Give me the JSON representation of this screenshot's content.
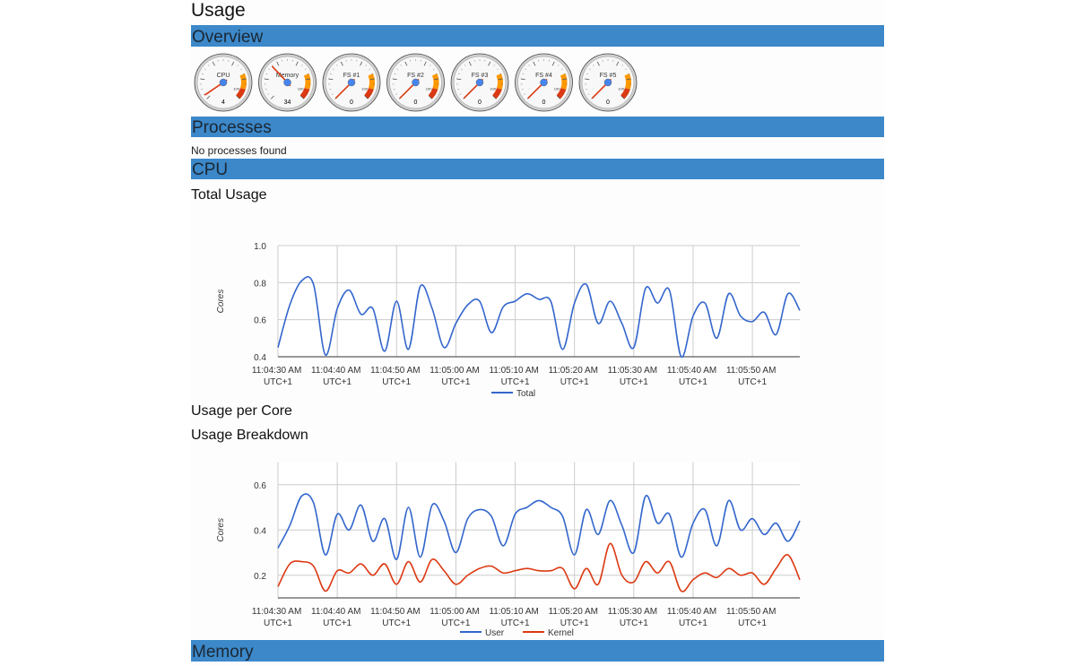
{
  "title": "Usage",
  "overview": {
    "heading": "Overview",
    "gauge_scale": {
      "min": 0,
      "max": 100,
      "max_label": "100"
    },
    "bands": [
      {
        "from": 75,
        "to": 90,
        "color": "#ff9900"
      },
      {
        "from": 90,
        "to": 100,
        "color": "#dc3912"
      }
    ],
    "gauges": [
      {
        "label": "CPU",
        "value": 4
      },
      {
        "label": "Memory",
        "value": 34
      },
      {
        "label": "FS #1",
        "value": 0
      },
      {
        "label": "FS #2",
        "value": 0
      },
      {
        "label": "FS #3",
        "value": 0
      },
      {
        "label": "FS #4",
        "value": 0
      },
      {
        "label": "FS #5",
        "value": 0
      }
    ]
  },
  "processes": {
    "heading": "Processes",
    "message": "No processes found"
  },
  "cpu": {
    "heading": "CPU",
    "total_heading": "Total Usage",
    "per_core_heading": "Usage per Core",
    "breakdown_heading": "Usage Breakdown"
  },
  "chart_data": [
    {
      "type": "line",
      "y_label": "Cores",
      "grid": true,
      "legend": "bottom",
      "x": [
        39870,
        39872,
        39874,
        39876,
        39878,
        39880,
        39882,
        39884,
        39886,
        39888,
        39890,
        39892,
        39894,
        39896,
        39898,
        39900,
        39902,
        39904,
        39906,
        39908,
        39910,
        39912,
        39914,
        39916,
        39918,
        39920,
        39922,
        39924,
        39926,
        39928,
        39930,
        39932,
        39934,
        39936,
        39938,
        39940,
        39942,
        39944,
        39946,
        39948,
        39950,
        39952,
        39954,
        39956,
        39958
      ],
      "xlim": [
        39870,
        39958
      ],
      "xticks": [
        {
          "value": 39870,
          "label": "11:04:30 AM UTC+1"
        },
        {
          "value": 39880,
          "label": "11:04:40 AM UTC+1"
        },
        {
          "value": 39890,
          "label": "11:04:50 AM UTC+1"
        },
        {
          "value": 39900,
          "label": "11:05:00 AM UTC+1"
        },
        {
          "value": 39910,
          "label": "11:05:10 AM UTC+1"
        },
        {
          "value": 39920,
          "label": "11:05:20 AM UTC+1"
        },
        {
          "value": 39930,
          "label": "11:05:30 AM UTC+1"
        },
        {
          "value": 39940,
          "label": "11:05:40 AM UTC+1"
        },
        {
          "value": 39950,
          "label": "11:05:50 AM UTC+1"
        }
      ],
      "ylim": [
        0.4,
        1
      ],
      "yticks": [
        0.4,
        0.6,
        0.8,
        {
          "value": 1,
          "label": "1.0"
        }
      ],
      "series": [
        {
          "name": "Total",
          "color": "#3366cc",
          "values": [
            0.45,
            0.68,
            0.81,
            0.79,
            0.41,
            0.66,
            0.76,
            0.63,
            0.66,
            0.43,
            0.7,
            0.44,
            0.78,
            0.66,
            0.45,
            0.58,
            0.68,
            0.7,
            0.53,
            0.67,
            0.7,
            0.74,
            0.71,
            0.7,
            0.44,
            0.69,
            0.79,
            0.58,
            0.7,
            0.58,
            0.45,
            0.77,
            0.69,
            0.76,
            0.4,
            0.62,
            0.69,
            0.5,
            0.74,
            0.62,
            0.59,
            0.64,
            0.52,
            0.74,
            0.65
          ]
        }
      ]
    },
    {
      "type": "line",
      "y_label": "Cores",
      "grid": true,
      "legend": "bottom",
      "x": [
        39870,
        39872,
        39874,
        39876,
        39878,
        39880,
        39882,
        39884,
        39886,
        39888,
        39890,
        39892,
        39894,
        39896,
        39898,
        39900,
        39902,
        39904,
        39906,
        39908,
        39910,
        39912,
        39914,
        39916,
        39918,
        39920,
        39922,
        39924,
        39926,
        39928,
        39930,
        39932,
        39934,
        39936,
        39938,
        39940,
        39942,
        39944,
        39946,
        39948,
        39950,
        39952,
        39954,
        39956,
        39958
      ],
      "xlim": [
        39870,
        39958
      ],
      "xticks": [
        {
          "value": 39870,
          "label": "11:04:30 AM UTC+1"
        },
        {
          "value": 39880,
          "label": "11:04:40 AM UTC+1"
        },
        {
          "value": 39890,
          "label": "11:04:50 AM UTC+1"
        },
        {
          "value": 39900,
          "label": "11:05:00 AM UTC+1"
        },
        {
          "value": 39910,
          "label": "11:05:10 AM UTC+1"
        },
        {
          "value": 39920,
          "label": "11:05:20 AM UTC+1"
        },
        {
          "value": 39930,
          "label": "11:05:30 AM UTC+1"
        },
        {
          "value": 39940,
          "label": "11:05:40 AM UTC+1"
        },
        {
          "value": 39950,
          "label": "11:05:50 AM UTC+1"
        }
      ],
      "ylim": [
        0.1,
        0.7
      ],
      "yticks": [
        0.2,
        0.4,
        0.6
      ],
      "series": [
        {
          "name": "User",
          "color": "#3366cc",
          "values": [
            0.32,
            0.42,
            0.55,
            0.52,
            0.29,
            0.47,
            0.4,
            0.51,
            0.35,
            0.45,
            0.27,
            0.5,
            0.28,
            0.51,
            0.44,
            0.3,
            0.45,
            0.49,
            0.46,
            0.33,
            0.47,
            0.5,
            0.53,
            0.5,
            0.46,
            0.29,
            0.49,
            0.38,
            0.53,
            0.42,
            0.3,
            0.55,
            0.43,
            0.47,
            0.28,
            0.43,
            0.49,
            0.33,
            0.53,
            0.4,
            0.45,
            0.38,
            0.43,
            0.35,
            0.44
          ]
        },
        {
          "name": "Kernel",
          "color": "#dc3912",
          "values": [
            0.15,
            0.25,
            0.26,
            0.24,
            0.13,
            0.22,
            0.21,
            0.25,
            0.2,
            0.25,
            0.16,
            0.26,
            0.17,
            0.27,
            0.22,
            0.16,
            0.2,
            0.23,
            0.24,
            0.21,
            0.22,
            0.23,
            0.22,
            0.22,
            0.23,
            0.14,
            0.23,
            0.16,
            0.34,
            0.2,
            0.17,
            0.26,
            0.21,
            0.26,
            0.13,
            0.18,
            0.21,
            0.19,
            0.23,
            0.2,
            0.21,
            0.16,
            0.23,
            0.29,
            0.18
          ]
        }
      ]
    }
  ],
  "memory": {
    "heading": "Memory"
  }
}
